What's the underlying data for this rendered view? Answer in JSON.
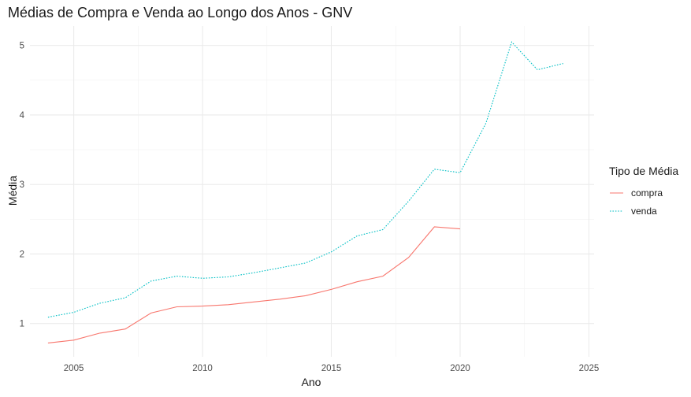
{
  "chart_data": {
    "type": "line",
    "title": "Médias de Compra e Venda ao Longo dos Anos - GNV",
    "xlabel": "Ano",
    "ylabel": "Média",
    "xlim": [
      2003.3,
      2025.2
    ],
    "ylim": [
      0.52,
      5.28
    ],
    "x_ticks": [
      2005,
      2010,
      2015,
      2020,
      2025
    ],
    "y_ticks": [
      1,
      2,
      3,
      4,
      5
    ],
    "x_tick_labels": [
      "2005",
      "2010",
      "2015",
      "2020",
      "2025"
    ],
    "y_tick_labels": [
      "1",
      "2",
      "3",
      "4",
      "5"
    ],
    "grid": true,
    "legend": {
      "title": "Tipo de Média",
      "position": "right",
      "labels": [
        "compra",
        "venda"
      ]
    },
    "series": [
      {
        "name": "compra",
        "color": "#F8766D",
        "linetype": "solid",
        "x": [
          2004,
          2005,
          2006,
          2007,
          2008,
          2009,
          2010,
          2011,
          2012,
          2013,
          2014,
          2015,
          2016,
          2017,
          2018,
          2019,
          2020
        ],
        "y": [
          0.72,
          0.76,
          0.86,
          0.92,
          1.15,
          1.24,
          1.25,
          1.27,
          1.31,
          1.35,
          1.4,
          1.49,
          1.6,
          1.68,
          1.95,
          2.39,
          2.36
        ]
      },
      {
        "name": "venda",
        "color": "#00BFC4",
        "linetype": "dotted",
        "x": [
          2004,
          2005,
          2006,
          2007,
          2008,
          2009,
          2010,
          2011,
          2012,
          2013,
          2014,
          2015,
          2016,
          2017,
          2018,
          2019,
          2020,
          2021,
          2022,
          2023,
          2024
        ],
        "y": [
          1.09,
          1.16,
          1.29,
          1.37,
          1.61,
          1.68,
          1.65,
          1.67,
          1.73,
          1.8,
          1.87,
          2.03,
          2.26,
          2.35,
          2.76,
          3.22,
          3.17,
          3.88,
          5.05,
          4.65,
          4.74
        ]
      }
    ]
  }
}
